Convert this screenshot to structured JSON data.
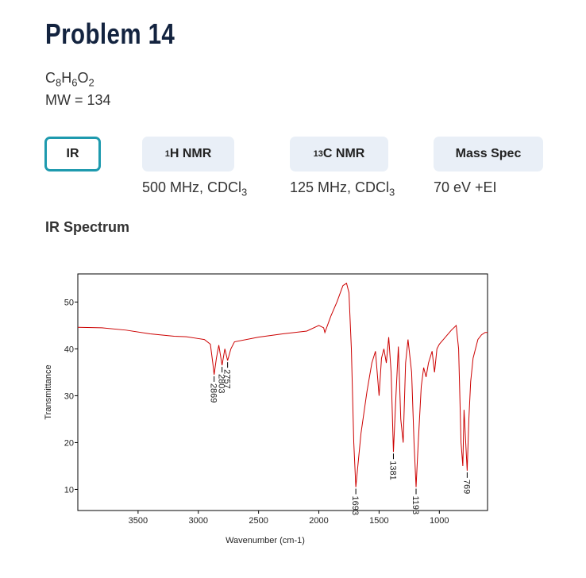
{
  "header": {
    "title": "Problem 14",
    "formula": [
      "C",
      "8",
      "H",
      "6",
      "O",
      "2"
    ],
    "mw": "MW = 134"
  },
  "tabs": [
    {
      "label": "IR"
    },
    {
      "sup": "1",
      "label": "H NMR",
      "note": "500 MHz, CDCl",
      "note_sub": "3"
    },
    {
      "sup": "13",
      "label": "C NMR",
      "note": "125 MHz, CDCl",
      "note_sub": "3"
    },
    {
      "label": "Mass Spec",
      "note": "70 eV +EI"
    }
  ],
  "section": "IR Spectrum",
  "chart_data": {
    "type": "line",
    "x_label": "Wavenumber (cm-1)",
    "y_label": "Transmittance",
    "xlim": [
      4000,
      600
    ],
    "ylim": [
      5.5,
      56
    ],
    "xticks": [
      3500,
      3000,
      2500,
      2000,
      1500,
      1000
    ],
    "yticks": [
      10,
      20,
      30,
      40,
      50
    ],
    "x": [
      4000,
      3800,
      3600,
      3400,
      3200,
      3100,
      3000,
      2950,
      2900,
      2880,
      2869,
      2850,
      2830,
      2803,
      2780,
      2757,
      2730,
      2700,
      2500,
      2300,
      2100,
      2000,
      1960,
      1950,
      1900,
      1850,
      1800,
      1770,
      1750,
      1730,
      1710,
      1693,
      1680,
      1650,
      1600,
      1560,
      1530,
      1500,
      1480,
      1460,
      1440,
      1420,
      1400,
      1381,
      1360,
      1340,
      1320,
      1300,
      1280,
      1260,
      1230,
      1210,
      1193,
      1175,
      1150,
      1130,
      1110,
      1090,
      1060,
      1040,
      1020,
      1000,
      950,
      900,
      860,
      840,
      820,
      805,
      795,
      785,
      769,
      755,
      740,
      720,
      700,
      680,
      650,
      620,
      600
    ],
    "series": [
      {
        "color": "#cc0000",
        "values": [
          44.6,
          44.5,
          44.0,
          43.2,
          42.7,
          42.6,
          42.2,
          42.0,
          41.0,
          37.0,
          34.5,
          38.0,
          40.8,
          36.5,
          40.0,
          37.5,
          40.0,
          41.5,
          42.5,
          43.2,
          43.8,
          45.0,
          44.5,
          43.5,
          47.0,
          50.0,
          53.5,
          54.0,
          52.0,
          40.0,
          20.0,
          10.5,
          14.0,
          22.0,
          31.0,
          37.0,
          39.5,
          30.0,
          38.0,
          40.0,
          37.0,
          42.5,
          35.0,
          18.0,
          30.0,
          40.5,
          25.0,
          20.0,
          37.0,
          42.0,
          35.0,
          20.0,
          10.5,
          20.0,
          32.0,
          36.0,
          34.0,
          37.0,
          39.5,
          35.0,
          40.0,
          41.0,
          42.5,
          44.0,
          45.0,
          40.0,
          20.0,
          15.0,
          27.0,
          22.0,
          14.0,
          25.0,
          33.0,
          38.0,
          40.0,
          42.0,
          43.0,
          43.5,
          43.5
        ]
      }
    ],
    "annotations": [
      2869,
      2803,
      2757,
      1693,
      1381,
      1193,
      769
    ]
  }
}
